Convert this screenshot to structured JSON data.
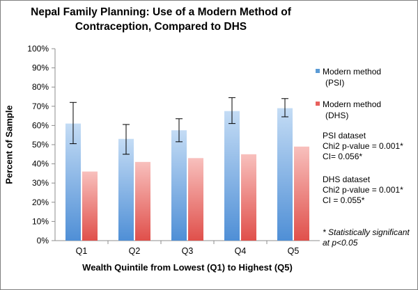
{
  "chart_data": {
    "type": "bar",
    "title_line1": "Nepal Family Planning:  Use of a Modern Method of",
    "title_line2": "Contraception, Compared to DHS",
    "xlabel": "Wealth Quintile from Lowest (Q1) to Highest (Q5)",
    "ylabel": "Percent of Sample",
    "ylim": [
      0,
      100
    ],
    "yticks": [
      "0%",
      "10%",
      "20%",
      "30%",
      "40%",
      "50%",
      "60%",
      "70%",
      "80%",
      "90%",
      "100%"
    ],
    "categories": [
      "Q1",
      "Q2",
      "Q3",
      "Q4",
      "Q5"
    ],
    "series": [
      {
        "name_line1": "Modern method",
        "name_line2": "(PSI)",
        "color": "#5b9bd5",
        "values": [
          61,
          53,
          57.5,
          67.5,
          69
        ],
        "error_low": [
          50.5,
          45,
          51.5,
          61,
          64.5
        ],
        "error_high": [
          72,
          60.5,
          63.5,
          74.5,
          74
        ]
      },
      {
        "name_line1": "Modern method",
        "name_line2": "(DHS)",
        "color": "#e8605c",
        "values": [
          36,
          41,
          43,
          45,
          49
        ]
      }
    ],
    "grid": false,
    "legend_position": "right"
  },
  "stats": {
    "psi": [
      "PSI dataset",
      "Chi2 p-value = 0.001*",
      "CI= 0.056*"
    ],
    "dhs": [
      "DHS dataset",
      "Chi2 p-value = 0.001*",
      "CI = 0.055*"
    ]
  },
  "footnote": {
    "line1": "* Statistically significant",
    "line2": "at p<0.05"
  }
}
